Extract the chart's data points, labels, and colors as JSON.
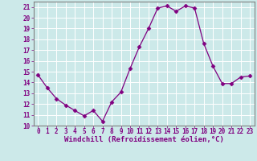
{
  "x": [
    0,
    1,
    2,
    3,
    4,
    5,
    6,
    7,
    8,
    9,
    10,
    11,
    12,
    13,
    14,
    15,
    16,
    17,
    18,
    19,
    20,
    21,
    22,
    23
  ],
  "y": [
    14.7,
    13.5,
    12.5,
    11.9,
    11.4,
    10.9,
    11.4,
    10.4,
    12.2,
    13.1,
    15.3,
    17.3,
    19.0,
    20.9,
    21.1,
    20.6,
    21.1,
    20.9,
    17.6,
    15.5,
    13.9,
    13.9,
    14.5,
    14.6
  ],
  "line_color": "#800080",
  "marker": "D",
  "marker_size": 2.5,
  "bg_color": "#cce9e9",
  "grid_color": "#ffffff",
  "xlabel": "Windchill (Refroidissement éolien,°C)",
  "ylim": [
    10,
    21.5
  ],
  "xlim": [
    -0.5,
    23.5
  ],
  "yticks": [
    10,
    11,
    12,
    13,
    14,
    15,
    16,
    17,
    18,
    19,
    20,
    21
  ],
  "xticks": [
    0,
    1,
    2,
    3,
    4,
    5,
    6,
    7,
    8,
    9,
    10,
    11,
    12,
    13,
    14,
    15,
    16,
    17,
    18,
    19,
    20,
    21,
    22,
    23
  ],
  "tick_label_fontsize": 5.5,
  "xlabel_fontsize": 6.5
}
